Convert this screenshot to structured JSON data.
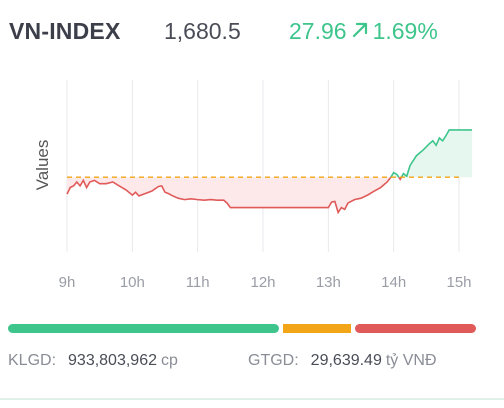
{
  "header": {
    "index_name": "VN-INDEX",
    "index_value": "1,680.5",
    "change_points": "27.96",
    "change_percent": "1.69%",
    "direction_icon": "arrow-up-right-icon",
    "change_color": "#3ec58c"
  },
  "chart_data": {
    "type": "line",
    "title": "",
    "xlabel": "",
    "ylabel": "Values",
    "x_tick_labels": [
      "9h",
      "10h",
      "11h",
      "12h",
      "13h",
      "14h",
      "15h"
    ],
    "x_range_hours": [
      9,
      15
    ],
    "y_range": [
      1617,
      1700
    ],
    "reference_value": 1652.54,
    "reference_style": "dashed",
    "grid": "vertical",
    "colors": {
      "below": "#e05a5a",
      "above": "#3ec58c",
      "reference": "#f2a516"
    },
    "series": [
      {
        "values": [
          [
            9.0,
            1644.3
          ],
          [
            9.05,
            1647.5
          ],
          [
            9.1,
            1648.3
          ],
          [
            9.15,
            1650.2
          ],
          [
            9.2,
            1648.3
          ],
          [
            9.25,
            1651.0
          ],
          [
            9.3,
            1647.5
          ],
          [
            9.35,
            1650.2
          ],
          [
            9.42,
            1651.0
          ],
          [
            9.5,
            1649.4
          ],
          [
            9.6,
            1649.4
          ],
          [
            9.7,
            1650.2
          ],
          [
            9.8,
            1648.3
          ],
          [
            9.9,
            1646.4
          ],
          [
            10.0,
            1643.8
          ],
          [
            10.05,
            1645.2
          ],
          [
            10.1,
            1643.4
          ],
          [
            10.2,
            1644.6
          ],
          [
            10.3,
            1645.8
          ],
          [
            10.4,
            1648.0
          ],
          [
            10.45,
            1648.3
          ],
          [
            10.5,
            1645.2
          ],
          [
            10.55,
            1644.6
          ],
          [
            10.6,
            1643.7
          ],
          [
            10.7,
            1642.3
          ],
          [
            10.8,
            1641.6
          ],
          [
            10.9,
            1642.0
          ],
          [
            11.0,
            1641.6
          ],
          [
            11.1,
            1641.3
          ],
          [
            11.2,
            1641.6
          ],
          [
            11.3,
            1641.3
          ],
          [
            11.4,
            1641.3
          ],
          [
            11.45,
            1639.9
          ],
          [
            11.5,
            1637.7
          ],
          [
            12.0,
            1637.7
          ],
          [
            12.5,
            1637.7
          ],
          [
            13.0,
            1637.7
          ],
          [
            13.05,
            1640.4
          ],
          [
            13.1,
            1640.7
          ],
          [
            13.15,
            1635.3
          ],
          [
            13.2,
            1637.7
          ],
          [
            13.25,
            1636.8
          ],
          [
            13.3,
            1639.9
          ],
          [
            13.4,
            1641.6
          ],
          [
            13.5,
            1642.3
          ],
          [
            13.6,
            1643.8
          ],
          [
            13.7,
            1645.7
          ],
          [
            13.8,
            1647.5
          ],
          [
            13.9,
            1650.2
          ],
          [
            13.95,
            1652.2
          ],
          [
            14.0,
            1654.8
          ],
          [
            14.05,
            1653.9
          ],
          [
            14.1,
            1651.5
          ],
          [
            14.15,
            1654.3
          ],
          [
            14.2,
            1653.0
          ],
          [
            14.25,
            1658.2
          ],
          [
            14.35,
            1663.1
          ],
          [
            14.45,
            1665.8
          ],
          [
            14.55,
            1669.0
          ],
          [
            14.6,
            1670.3
          ],
          [
            14.65,
            1668.1
          ],
          [
            14.7,
            1671.7
          ],
          [
            14.75,
            1670.3
          ],
          [
            14.8,
            1672.8
          ],
          [
            14.85,
            1675.6
          ],
          [
            15.0,
            1675.6
          ],
          [
            15.1,
            1675.6
          ],
          [
            15.2,
            1675.6
          ]
        ]
      }
    ]
  },
  "breadth_bar": {
    "advancing_ratio": 0.59,
    "unchanged_ratio": 0.147,
    "declining_ratio": 0.263,
    "colors": [
      "#3ec58c",
      "#f2a516",
      "#e05a5a"
    ]
  },
  "footer": {
    "volume_label": "KLGD:",
    "volume_value": "933,803,962",
    "volume_unit": "cp",
    "value_label": "GTGD:",
    "value_value": "29,639.49",
    "value_unit": "tỷ VNĐ"
  }
}
